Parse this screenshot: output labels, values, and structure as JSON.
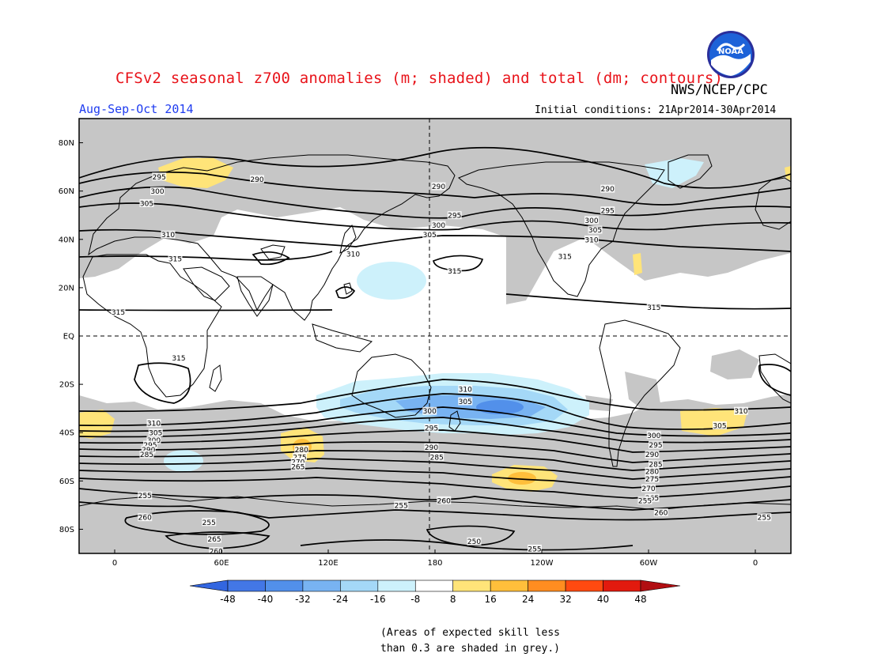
{
  "header": {
    "title": "CFSv2 seasonal z700 anomalies (m; shaded) and total (dm; contours)",
    "agency": "NWS/NCEP/CPC",
    "season": "Aug-Sep-Oct 2014",
    "initial_conditions": "Initial conditions: 21Apr2014-30Apr2014",
    "logo_text": "NOAA"
  },
  "map": {
    "projection": "cylindrical equidistant",
    "lon_range": [
      -20,
      380
    ],
    "lat_range": [
      -90,
      90
    ],
    "lat_labels": [
      "80N",
      "60N",
      "40N",
      "20N",
      "EQ",
      "20S",
      "40S",
      "60S",
      "80S"
    ],
    "lon_labels": [
      "0",
      "60E",
      "120E",
      "180",
      "120W",
      "60W",
      "0"
    ],
    "contour_labels": [
      {
        "text": "295",
        "lon": 25,
        "lat": 66
      },
      {
        "text": "290",
        "lon": 80,
        "lat": 65
      },
      {
        "text": "300",
        "lon": 24,
        "lat": 60
      },
      {
        "text": "305",
        "lon": 18,
        "lat": 55
      },
      {
        "text": "310",
        "lon": 30,
        "lat": 42
      },
      {
        "text": "315",
        "lon": 34,
        "lat": 32
      },
      {
        "text": "290",
        "lon": 182,
        "lat": 62
      },
      {
        "text": "295",
        "lon": 191,
        "lat": 50
      },
      {
        "text": "300",
        "lon": 182,
        "lat": 46
      },
      {
        "text": "305",
        "lon": 177,
        "lat": 42
      },
      {
        "text": "310",
        "lon": 134,
        "lat": 34
      },
      {
        "text": "315",
        "lon": 191,
        "lat": 27
      },
      {
        "text": "290",
        "lon": 277,
        "lat": 61
      },
      {
        "text": "295",
        "lon": 277,
        "lat": 52
      },
      {
        "text": "300",
        "lon": 268,
        "lat": 48
      },
      {
        "text": "305",
        "lon": 270,
        "lat": 44
      },
      {
        "text": "310",
        "lon": 268,
        "lat": 40
      },
      {
        "text": "315",
        "lon": 253,
        "lat": 33
      },
      {
        "text": "315",
        "lon": 2,
        "lat": 10
      },
      {
        "text": "315",
        "lon": 303,
        "lat": 12
      },
      {
        "text": "315",
        "lon": 36,
        "lat": -9
      },
      {
        "text": "310",
        "lon": 197,
        "lat": -22
      },
      {
        "text": "305",
        "lon": 197,
        "lat": -27
      },
      {
        "text": "300",
        "lon": 177,
        "lat": -31
      },
      {
        "text": "295",
        "lon": 178,
        "lat": -38
      },
      {
        "text": "290",
        "lon": 178,
        "lat": -46
      },
      {
        "text": "285",
        "lon": 181,
        "lat": -50
      },
      {
        "text": "310",
        "lon": 352,
        "lat": -31
      },
      {
        "text": "305",
        "lon": 340,
        "lat": -37
      },
      {
        "text": "300",
        "lon": 303,
        "lat": -41
      },
      {
        "text": "295",
        "lon": 304,
        "lat": -45
      },
      {
        "text": "290",
        "lon": 302,
        "lat": -49
      },
      {
        "text": "285",
        "lon": 304,
        "lat": -53
      },
      {
        "text": "280",
        "lon": 302,
        "lat": -56
      },
      {
        "text": "275",
        "lon": 302,
        "lat": -59
      },
      {
        "text": "270",
        "lon": 300,
        "lat": -63
      },
      {
        "text": "265",
        "lon": 302,
        "lat": -67
      },
      {
        "text": "260",
        "lon": 307,
        "lat": -73
      },
      {
        "text": "255",
        "lon": 365,
        "lat": -75
      },
      {
        "text": "310",
        "lon": 22,
        "lat": -36
      },
      {
        "text": "305",
        "lon": 23,
        "lat": -40
      },
      {
        "text": "300",
        "lon": 22,
        "lat": -43
      },
      {
        "text": "295",
        "lon": 20,
        "lat": -45
      },
      {
        "text": "290",
        "lon": 19,
        "lat": -47
      },
      {
        "text": "285",
        "lon": 18,
        "lat": -49
      },
      {
        "text": "280",
        "lon": 105,
        "lat": -47
      },
      {
        "text": "275",
        "lon": 104,
        "lat": -50
      },
      {
        "text": "270",
        "lon": 103,
        "lat": -52
      },
      {
        "text": "265",
        "lon": 103,
        "lat": -54
      },
      {
        "text": "255",
        "lon": 17,
        "lat": -66
      },
      {
        "text": "260",
        "lon": 17,
        "lat": -75
      },
      {
        "text": "255",
        "lon": 53,
        "lat": -77
      },
      {
        "text": "265",
        "lon": 56,
        "lat": -84
      },
      {
        "text": "260",
        "lon": 57,
        "lat": -89
      },
      {
        "text": "255",
        "lon": 161,
        "lat": -70
      },
      {
        "text": "260",
        "lon": 185,
        "lat": -68
      },
      {
        "text": "250",
        "lon": 202,
        "lat": -85
      },
      {
        "text": "255",
        "lon": 236,
        "lat": -88
      },
      {
        "text": "255",
        "lon": 298,
        "lat": -68
      }
    ]
  },
  "colorbar": {
    "tick_labels": [
      "-48",
      "-40",
      "-32",
      "-24",
      "-16",
      "-8",
      "8",
      "16",
      "24",
      "32",
      "40",
      "48"
    ],
    "colors": [
      "#3366e0",
      "#4377e6",
      "#5290ea",
      "#78b3f2",
      "#a4d8f7",
      "#cdf1fb",
      "#ffffff",
      "#ffe479",
      "#ffbf3b",
      "#ff8d20",
      "#ff4a10",
      "#e21a0e",
      "#b10e12"
    ]
  },
  "footnote": {
    "line1": "(Areas of expected skill less",
    "line2": "than 0.3 are shaded in grey.)"
  }
}
